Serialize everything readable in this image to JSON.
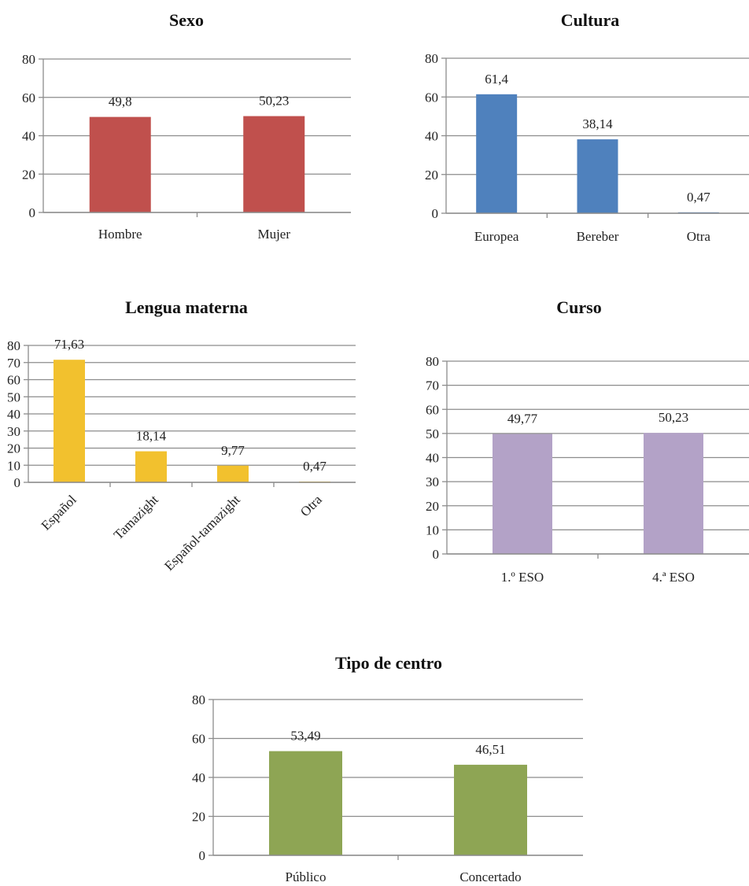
{
  "chart_data": [
    {
      "id": "sexo",
      "type": "bar",
      "title": "Sexo",
      "categories": [
        "Hombre",
        "Mujer"
      ],
      "values": [
        49.8,
        50.23
      ],
      "data_labels": [
        "49,8",
        "50,23"
      ],
      "ylim": [
        0,
        80
      ],
      "yticks": [
        0,
        20,
        40,
        60,
        80
      ],
      "color": "#c0504d",
      "grid": true,
      "legend": "none"
    },
    {
      "id": "cultura",
      "type": "bar",
      "title": "Cultura",
      "categories": [
        "Europea",
        "Bereber",
        "Otra"
      ],
      "values": [
        61.4,
        38.14,
        0.47
      ],
      "data_labels": [
        "61,4",
        "38,14",
        "0,47"
      ],
      "ylim": [
        0,
        80
      ],
      "yticks": [
        0,
        20,
        40,
        60,
        80
      ],
      "color": "#4f81bd",
      "grid": true,
      "legend": "none"
    },
    {
      "id": "lengua",
      "type": "bar",
      "title": "Lengua materna",
      "categories": [
        "Español",
        "Tamazight",
        "Español-tamazight",
        "Otra"
      ],
      "values": [
        71.63,
        18.14,
        9.77,
        0.47
      ],
      "data_labels": [
        "71,63",
        "18,14",
        "9,77",
        "0,47"
      ],
      "ylim": [
        0,
        80
      ],
      "yticks": [
        0,
        10,
        20,
        30,
        40,
        50,
        60,
        70,
        80
      ],
      "color": "#f2c12e",
      "grid": true,
      "legend": "none"
    },
    {
      "id": "curso",
      "type": "bar",
      "title": "Curso",
      "categories": [
        "1.º ESO",
        "4.ª ESO"
      ],
      "values": [
        49.77,
        50.23
      ],
      "data_labels": [
        "49,77",
        "50,23"
      ],
      "ylim": [
        0,
        80
      ],
      "yticks": [
        0,
        10,
        20,
        30,
        40,
        50,
        60,
        70,
        80
      ],
      "color": "#b3a2c7",
      "grid": true,
      "legend": "none"
    },
    {
      "id": "centro",
      "type": "bar",
      "title": "Tipo de centro",
      "categories": [
        "Público",
        "Concertado"
      ],
      "values": [
        53.49,
        46.51
      ],
      "data_labels": [
        "53,49",
        "46,51"
      ],
      "ylim": [
        0,
        80
      ],
      "yticks": [
        0,
        20,
        40,
        60,
        80
      ],
      "color": "#8ea554",
      "grid": true,
      "legend": "none"
    }
  ]
}
